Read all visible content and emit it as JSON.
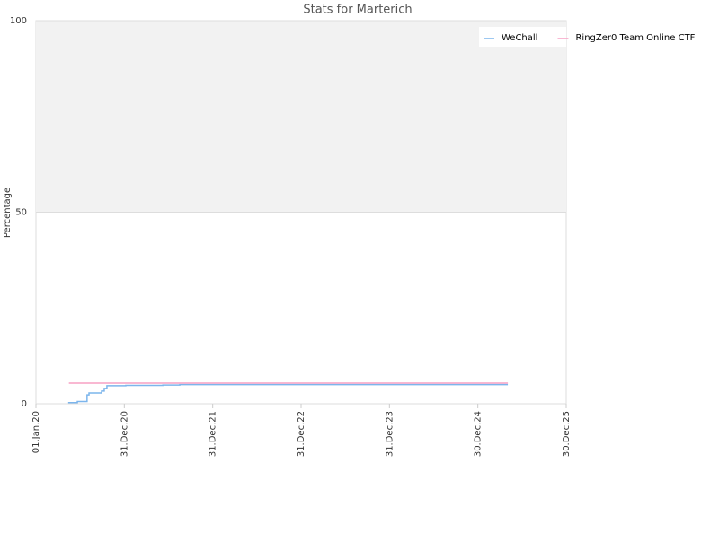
{
  "chart_data": {
    "type": "line",
    "title": "Stats for Marterich",
    "y_label": "Percentage",
    "step": true,
    "x": null,
    "series": [
      {
        "name": "WeChall",
        "color": "#7cb5ec",
        "x": [
          "2020-05-13",
          "2020-06-20",
          "2020-07-30",
          "2020-08-07",
          "2020-09-28",
          "2020-10-09",
          "2020-10-20",
          "2021-01-06",
          "2021-06-08",
          "2021-08-17",
          "2025-05-03"
        ],
        "values": [
          0.3,
          0.6,
          2.3,
          2.8,
          3.3,
          4.0,
          4.7,
          4.8,
          4.9,
          5.0,
          5.0
        ]
      },
      {
        "name": "RingZer0 Team Online CTF",
        "color": "#f7a1c4",
        "x": [
          "2020-05-16",
          "2025-05-03"
        ],
        "values": [
          5.4,
          5.4
        ]
      }
    ],
    "xlim": [
      "2020-01-01",
      "2025-12-30"
    ],
    "xticks": [
      {
        "value": "2020-01-01",
        "label": "01.Jan.20"
      },
      {
        "value": "2020-12-31",
        "label": "31.Dec.20"
      },
      {
        "value": "2021-12-31",
        "label": "31.Dec.21"
      },
      {
        "value": "2022-12-31",
        "label": "31.Dec.22"
      },
      {
        "value": "2023-12-31",
        "label": "31.Dec.23"
      },
      {
        "value": "2024-12-30",
        "label": "30.Dec.24"
      },
      {
        "value": "2025-12-30",
        "label": "30.Dec.25"
      }
    ],
    "ylim": [
      0,
      100
    ],
    "yticks": [
      0,
      50,
      100
    ],
    "grid": true,
    "plot_bands": [
      {
        "from": 50,
        "to": 100,
        "color": "#f2f2f2"
      }
    ],
    "legend": "top-right"
  }
}
